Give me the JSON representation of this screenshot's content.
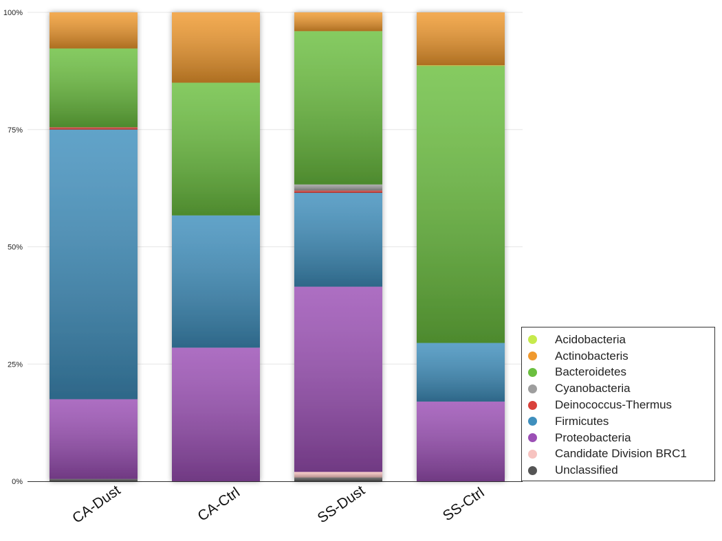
{
  "chart_data": {
    "type": "bar",
    "stacked": true,
    "title": "",
    "xlabel": "",
    "ylabel": "",
    "ylim": [
      0,
      100
    ],
    "yticks": [
      "0%",
      "25%",
      "50%",
      "75%",
      "100%"
    ],
    "yticks_values": [
      0,
      25,
      50,
      75,
      100
    ],
    "grid": true,
    "legend_position": "bottom-right",
    "categories": [
      "CA-Dust",
      "CA-Ctrl",
      "SS-Dust",
      "SS-Ctrl"
    ],
    "series": [
      {
        "name": "Unclassified",
        "color": "#555555",
        "values": [
          0.5,
          0.0,
          0.8,
          0.0
        ]
      },
      {
        "name": "Candidate Division BRC1",
        "color": "#f7c3c0",
        "values": [
          0.0,
          0.0,
          1.2,
          0.0
        ]
      },
      {
        "name": "Proteobacteria",
        "color": "#9b4fb5",
        "values": [
          17.0,
          28.5,
          39.5,
          17.0
        ]
      },
      {
        "name": "Firmicutes",
        "color": "#3f8fbd",
        "values": [
          57.5,
          28.2,
          20.0,
          12.5
        ]
      },
      {
        "name": "Deinococcus-Thermus",
        "color": "#d9413b",
        "values": [
          0.5,
          0.0,
          0.5,
          0.0
        ]
      },
      {
        "name": "Cyanobacteria",
        "color": "#9e9e9e",
        "values": [
          0.0,
          0.0,
          1.3,
          0.0
        ]
      },
      {
        "name": "Bacteroidetes",
        "color": "#6bbf3f",
        "values": [
          16.8,
          28.3,
          32.7,
          59.0
        ]
      },
      {
        "name": "Acidobacteria",
        "color": "#c6ea4c",
        "values": [
          0.0,
          0.0,
          0.0,
          0.2
        ]
      },
      {
        "name": "Actinobacteris",
        "color": "#f0992e",
        "values": [
          7.7,
          15.0,
          4.0,
          11.3
        ]
      }
    ]
  },
  "legend": {
    "items": [
      {
        "label": "Acidobacteria",
        "color": "#c6ea4c"
      },
      {
        "label": "Actinobacteris",
        "color": "#f0992e"
      },
      {
        "label": "Bacteroidetes",
        "color": "#6bbf3f"
      },
      {
        "label": "Cyanobacteria",
        "color": "#9e9e9e"
      },
      {
        "label": "Deinococcus-Thermus",
        "color": "#d9413b"
      },
      {
        "label": "Firmicutes",
        "color": "#3f8fbd"
      },
      {
        "label": "Proteobacteria",
        "color": "#9b4fb5"
      },
      {
        "label": "Candidate Division BRC1",
        "color": "#f7c3c0"
      },
      {
        "label": "Unclassified",
        "color": "#555555"
      }
    ]
  }
}
